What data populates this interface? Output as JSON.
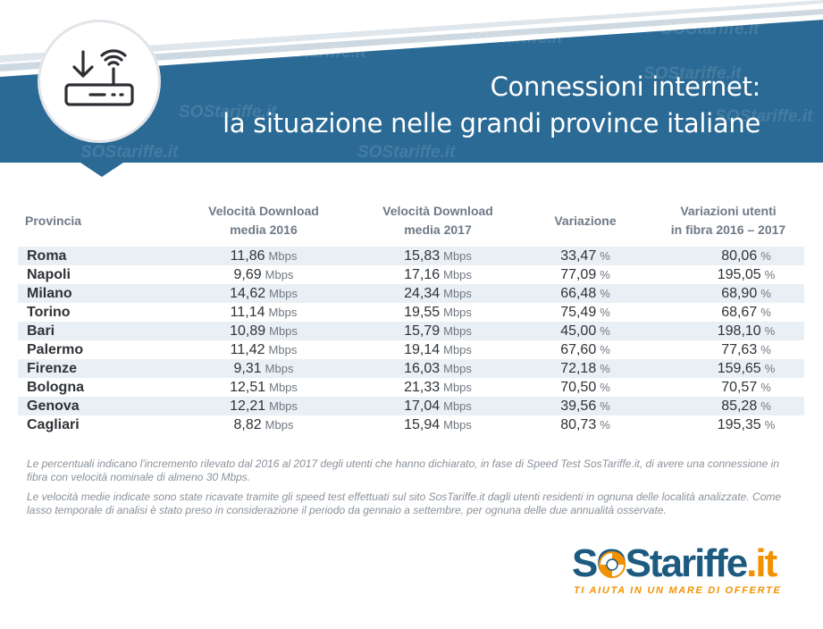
{
  "header": {
    "title_line1": "Connessioni internet:",
    "title_line2": "la situazione nelle grandi province italiane",
    "watermark": "SOStariffe.it",
    "icon": "router-download-icon",
    "colors": {
      "band": "#2b6a95",
      "accent": "#f39200"
    }
  },
  "table": {
    "headers": {
      "provincia": "Provincia",
      "d2016_l1": "Velocità Download",
      "d2016_l2": "media 2016",
      "d2017_l1": "Velocità Download",
      "d2017_l2": "media 2017",
      "variazione": "Variazione",
      "fibra_l1": "Variazioni utenti",
      "fibra_l2": "in fibra 2016 – 2017"
    },
    "speed_unit": "Mbps",
    "pct_unit": "%",
    "rows": [
      {
        "name": "Roma",
        "d2016": "11,86",
        "d2017": "15,83",
        "var": "33,47",
        "fibra": "80,06"
      },
      {
        "name": "Napoli",
        "d2016": "9,69",
        "d2017": "17,16",
        "var": "77,09",
        "fibra": "195,05"
      },
      {
        "name": "Milano",
        "d2016": "14,62",
        "d2017": "24,34",
        "var": "66,48",
        "fibra": "68,90"
      },
      {
        "name": "Torino",
        "d2016": "11,14",
        "d2017": "19,55",
        "var": "75,49",
        "fibra": "68,67"
      },
      {
        "name": "Bari",
        "d2016": "10,89",
        "d2017": "15,79",
        "var": "45,00",
        "fibra": "198,10"
      },
      {
        "name": "Palermo",
        "d2016": "11,42",
        "d2017": "19,14",
        "var": "67,60",
        "fibra": "77,63"
      },
      {
        "name": "Firenze",
        "d2016": "9,31",
        "d2017": "16,03",
        "var": "72,18",
        "fibra": "159,65"
      },
      {
        "name": "Bologna",
        "d2016": "12,51",
        "d2017": "21,33",
        "var": "70,50",
        "fibra": "70,57"
      },
      {
        "name": "Genova",
        "d2016": "12,21",
        "d2017": "17,04",
        "var": "39,56",
        "fibra": "85,28"
      },
      {
        "name": "Cagliari",
        "d2016": "8,82",
        "d2017": "15,94",
        "var": "80,73",
        "fibra": "195,35"
      }
    ]
  },
  "notes": {
    "note1": "Le percentuali indicano l'incremento rilevato dal 2016 al 2017 degli utenti che hanno dichiarato, in fase di Speed Test SosTariffe.it, di avere una connessione in fibra con velocità nominale di almeno 30 Mbps.",
    "note2": "Le velocità medie indicate sono state ricavate tramite gli speed test effettuati sul sito SosTariffe.it dagli utenti residenti in ognuna delle località analizzate. Come lasso temporale di analisi è stato preso in considerazione il periodo da gennaio a settembre, per ognuna delle due annualità osservate."
  },
  "logo": {
    "sos": "SOS",
    "tariffe": "tariffe",
    "dotit": ".it",
    "slogan": "TI AIUTA IN UN MARE DI OFFERTE",
    "icon": "lifebuoy-icon"
  }
}
